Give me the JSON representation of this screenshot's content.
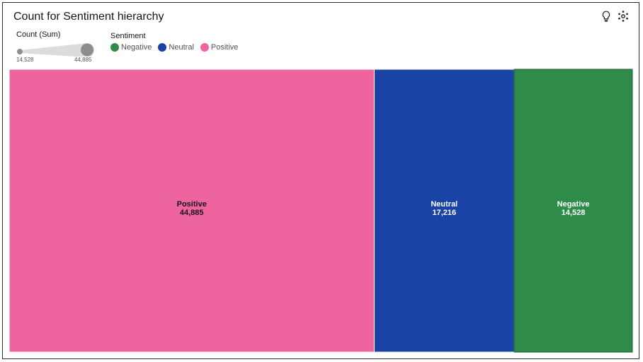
{
  "title": "Count for Sentiment hierarchy",
  "icons": {
    "insight": "lightbulb-icon",
    "settings": "settings-icon"
  },
  "size_legend": {
    "title": "Count (Sum)",
    "min_label": "14,528",
    "max_label": "44,885"
  },
  "color_legend": {
    "title": "Sentiment",
    "items": [
      {
        "label": "Negative",
        "color": "#2e8b4a"
      },
      {
        "label": "Neutral",
        "color": "#1a43a6"
      },
      {
        "label": "Positive",
        "color": "#ee649f"
      }
    ]
  },
  "chart_data": {
    "type": "treemap",
    "title": "Count for Sentiment hierarchy",
    "size_measure": "Count (Sum)",
    "color_by": "Sentiment",
    "nodes": [
      {
        "name": "Positive",
        "value": 44885,
        "label": "44,885",
        "color": "#ee649f",
        "label_color": "#161616"
      },
      {
        "name": "Neutral",
        "value": 17216,
        "label": "17,216",
        "color": "#1a43a6",
        "label_color": "#ffffff"
      },
      {
        "name": "Negative",
        "value": 14528,
        "label": "14,528",
        "color": "#2e8b4a",
        "label_color": "#ffffff"
      }
    ]
  }
}
